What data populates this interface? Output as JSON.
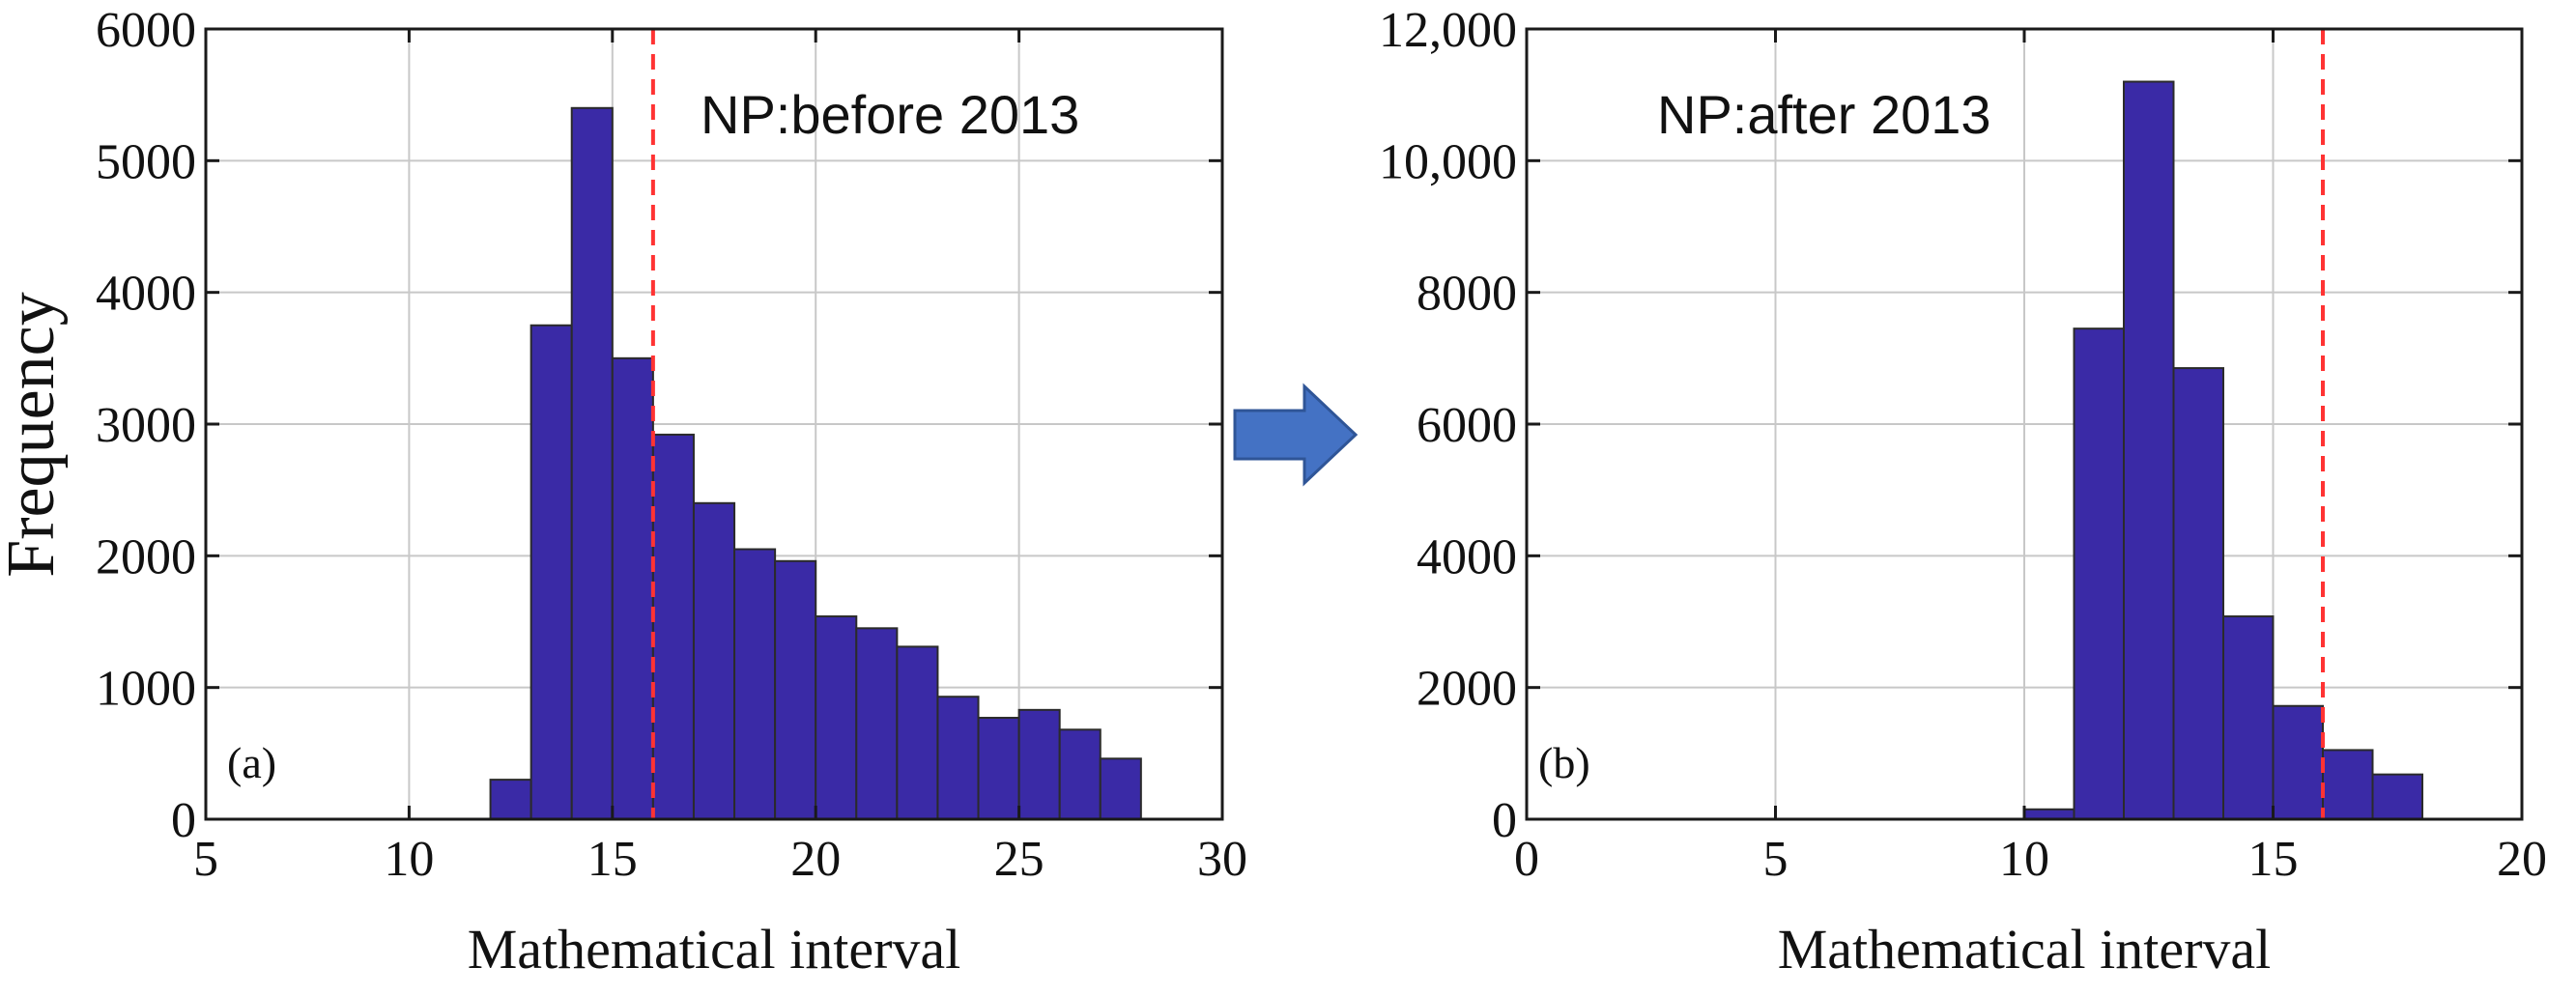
{
  "figure": {
    "arrow_color": "#4472C4",
    "arrow_icon": "right-arrow-icon"
  },
  "chart_data": [
    {
      "type": "bar",
      "panel_label": "(a)",
      "annotation": "NP:before 2013",
      "xlabel": "Mathematical interval",
      "ylabel": "Frequency",
      "xlim": [
        5,
        30
      ],
      "ylim": [
        0,
        6000
      ],
      "xticks": [
        5,
        10,
        15,
        20,
        25,
        30
      ],
      "yticks": [
        0,
        1000,
        2000,
        3000,
        4000,
        5000,
        6000
      ],
      "xtick_labels": [
        "5",
        "10",
        "15",
        "20",
        "25",
        "30"
      ],
      "ytick_labels": [
        "0",
        "1000",
        "2000",
        "3000",
        "4000",
        "5000",
        "6000"
      ],
      "grid": true,
      "bar_color": "#3A2AA6",
      "reference_line": {
        "x": 16,
        "color": "#FF3333",
        "style": "dashed"
      },
      "bin_width": 1,
      "bin_starts": [
        12,
        13,
        14,
        15,
        16,
        17,
        18,
        19,
        20,
        21,
        22,
        23,
        24,
        25,
        26,
        27
      ],
      "values": [
        300,
        3750,
        5400,
        3500,
        2920,
        2400,
        2050,
        1960,
        1540,
        1450,
        1310,
        930,
        770,
        830,
        680,
        460
      ]
    },
    {
      "type": "bar",
      "panel_label": "(b)",
      "annotation": "NP:after 2013",
      "xlabel": "Mathematical interval",
      "ylabel": "",
      "xlim": [
        0,
        20
      ],
      "ylim": [
        0,
        12000
      ],
      "xticks": [
        0,
        5,
        10,
        15,
        20
      ],
      "yticks": [
        0,
        2000,
        4000,
        6000,
        8000,
        10000,
        12000
      ],
      "xtick_labels": [
        "0",
        "5",
        "10",
        "15",
        "20"
      ],
      "ytick_labels": [
        "0",
        "2000",
        "4000",
        "6000",
        "8000",
        "10,000",
        "12,000"
      ],
      "grid": true,
      "bar_color": "#3A2AA6",
      "reference_line": {
        "x": 16,
        "color": "#FF3333",
        "style": "dashed"
      },
      "bin_width": 1,
      "bin_starts": [
        10,
        11,
        12,
        13,
        14,
        15,
        16,
        17
      ],
      "values": [
        150,
        7450,
        11200,
        6850,
        3080,
        1720,
        1050,
        680
      ]
    }
  ]
}
